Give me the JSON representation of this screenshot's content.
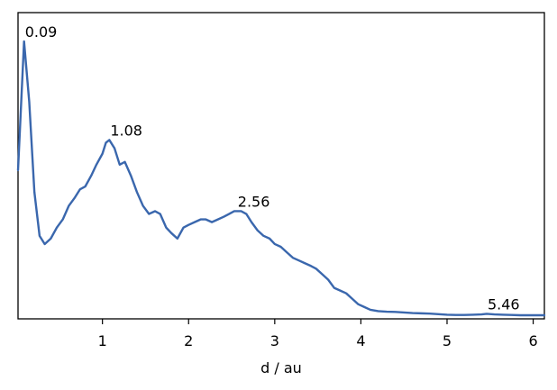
{
  "chart_data": {
    "type": "line",
    "title": "",
    "xlabel": "d / au",
    "ylabel": "",
    "xlim": [
      0.02,
      6.13
    ],
    "ylim": [
      0.0,
      1.0
    ],
    "xticks": [
      1,
      2,
      3,
      4,
      5,
      6
    ],
    "xtick_labels": [
      "1",
      "2",
      "3",
      "4",
      "5",
      "6"
    ],
    "yticks_shown": false,
    "grid": false,
    "legend": "none",
    "series": [
      {
        "color": "#3a67ad",
        "x": [
          0.02,
          0.09,
          0.15,
          0.21,
          0.27,
          0.33,
          0.4,
          0.47,
          0.54,
          0.61,
          0.68,
          0.74,
          0.8,
          0.87,
          0.93,
          1.0,
          1.04,
          1.08,
          1.14,
          1.2,
          1.26,
          1.33,
          1.4,
          1.47,
          1.54,
          1.61,
          1.67,
          1.74,
          1.8,
          1.87,
          1.94,
          2.0,
          2.07,
          2.14,
          2.2,
          2.27,
          2.34,
          2.41,
          2.47,
          2.53,
          2.56,
          2.61,
          2.67,
          2.73,
          2.8,
          2.87,
          2.94,
          3.0,
          3.07,
          3.14,
          3.21,
          3.28,
          3.35,
          3.42,
          3.48,
          3.55,
          3.62,
          3.69,
          3.76,
          3.83,
          3.9,
          3.97,
          4.04,
          4.11,
          4.2,
          4.3,
          4.4,
          4.5,
          4.6,
          4.7,
          4.8,
          4.9,
          5.0,
          5.1,
          5.2,
          5.3,
          5.4,
          5.46,
          5.55,
          5.65,
          5.75,
          5.85,
          5.95,
          6.05,
          6.13
        ],
        "y": [
          0.53,
          1.0,
          0.78,
          0.45,
          0.29,
          0.26,
          0.28,
          0.32,
          0.35,
          0.4,
          0.43,
          0.46,
          0.47,
          0.51,
          0.55,
          0.59,
          0.63,
          0.64,
          0.61,
          0.55,
          0.56,
          0.51,
          0.45,
          0.4,
          0.37,
          0.38,
          0.37,
          0.32,
          0.3,
          0.28,
          0.32,
          0.33,
          0.34,
          0.35,
          0.35,
          0.34,
          0.35,
          0.36,
          0.37,
          0.38,
          0.38,
          0.38,
          0.37,
          0.34,
          0.31,
          0.29,
          0.28,
          0.26,
          0.25,
          0.23,
          0.21,
          0.2,
          0.19,
          0.18,
          0.17,
          0.15,
          0.13,
          0.1,
          0.09,
          0.08,
          0.06,
          0.04,
          0.03,
          0.02,
          0.015,
          0.013,
          0.012,
          0.01,
          0.008,
          0.007,
          0.006,
          0.004,
          0.002,
          0.001,
          0.001,
          0.002,
          0.003,
          0.005,
          0.003,
          0.002,
          0.001,
          0.0,
          0.0,
          0.0,
          0.0
        ]
      }
    ],
    "annotations": [
      {
        "text": "0.09",
        "x": 0.09,
        "y": 1.0
      },
      {
        "text": "1.08",
        "x": 1.08,
        "y": 0.64
      },
      {
        "text": "2.56",
        "x": 2.56,
        "y": 0.38
      },
      {
        "text": "5.46",
        "x": 5.46,
        "y": 0.005
      }
    ]
  }
}
